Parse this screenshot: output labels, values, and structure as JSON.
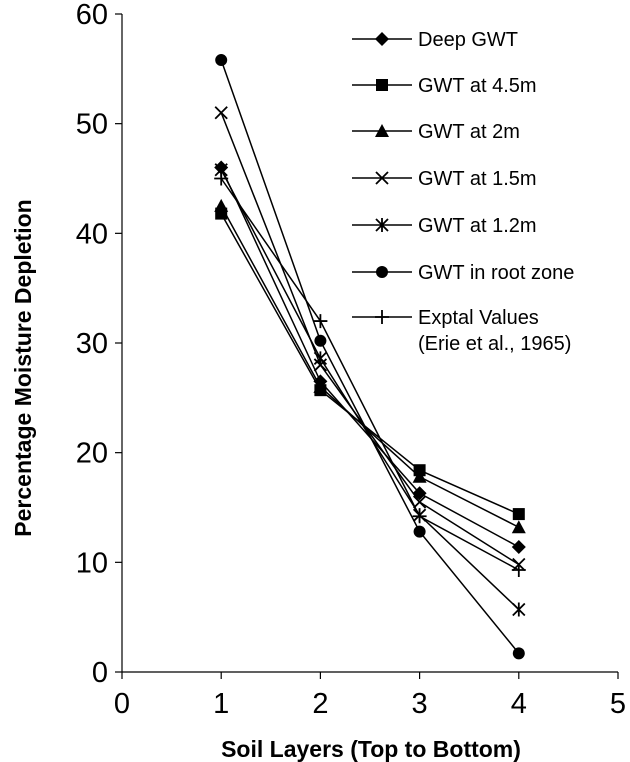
{
  "chart_data": {
    "type": "line",
    "title": "",
    "xlabel": "Soil Layers (Top to Bottom)",
    "ylabel": "Percentage Moisture Depletion",
    "xlim": [
      0,
      5
    ],
    "ylim": [
      0,
      60
    ],
    "x_ticks": [
      "0",
      "1",
      "2",
      "3",
      "4",
      "5"
    ],
    "y_ticks": [
      "0",
      "10",
      "20",
      "30",
      "40",
      "50",
      "60"
    ],
    "grid": false,
    "legend_position": "top-right",
    "x": [
      1,
      2,
      3,
      4
    ],
    "series": [
      {
        "name": "Deep GWT",
        "marker": "diamond",
        "values": [
          46.0,
          26.5,
          16.3,
          11.4
        ]
      },
      {
        "name": "GWT at 4.5m",
        "marker": "square",
        "values": [
          41.8,
          25.7,
          18.4,
          14.4
        ]
      },
      {
        "name": "GWT at 2m",
        "marker": "triangle",
        "values": [
          42.5,
          26.0,
          17.8,
          13.2
        ]
      },
      {
        "name": "GWT at 1.5m",
        "marker": "x",
        "values": [
          51.0,
          28.0,
          15.5,
          9.8
        ]
      },
      {
        "name": "GWT at 1.2m",
        "marker": "asterisk",
        "values": [
          45.8,
          28.6,
          14.3,
          5.7
        ]
      },
      {
        "name": "GWT in root zone",
        "marker": "circle",
        "values": [
          55.8,
          30.2,
          12.8,
          1.7
        ]
      },
      {
        "name": "Exptal Values (Erie et al., 1965)",
        "label_lines": [
          "Exptal Values",
          "(Erie et al., 1965)"
        ],
        "marker": "plus",
        "values": [
          45.0,
          32.0,
          14.2,
          9.3
        ]
      }
    ]
  }
}
